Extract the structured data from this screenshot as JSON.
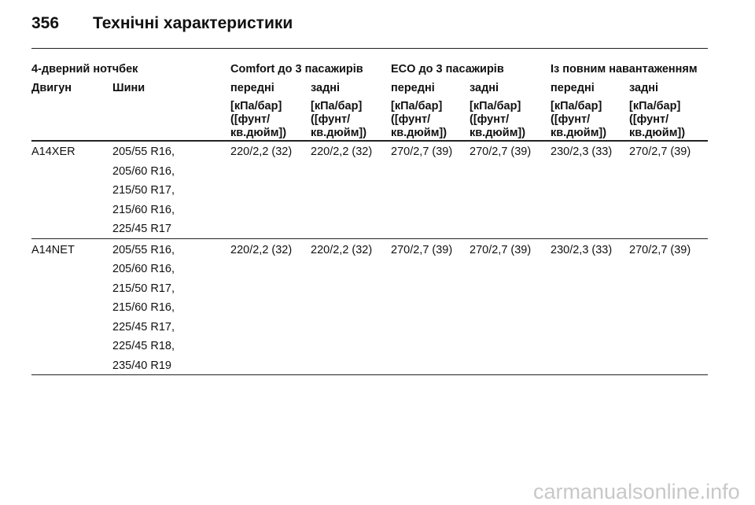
{
  "header": {
    "page_number": "356",
    "title": "Технічні характеристики"
  },
  "table": {
    "group_row": [
      "4-дверний нотчбек",
      "Comfort до 3 пасажирів",
      "ECO до 3 пасажирів",
      "Із повним навантаженням"
    ],
    "column_headers": [
      "Двигун",
      "Шини",
      "передні",
      "задні",
      "передні",
      "задні",
      "передні",
      "задні"
    ],
    "units": [
      [
        "[кПа/бар]",
        "([фунт/",
        "кв.дюйм])"
      ],
      [
        "[кПа/бар]",
        "([фунт/",
        "кв.дюйм])"
      ],
      [
        "[кПа/бар]",
        "([фунт/",
        "кв.дюйм])"
      ],
      [
        "[кПа/бар]",
        "([фунт/",
        "кв.дюйм])"
      ],
      [
        "[кПа/бар]",
        "([фунт/",
        "кв.дюйм])"
      ],
      [
        "[кПа/бар]",
        "([фунт/",
        "кв.дюйм])"
      ]
    ],
    "rows": [
      {
        "engine": "A14XER",
        "tyres": [
          "205/55 R16,",
          "205/60 R16,",
          "215/50 R17,",
          "215/60 R16,",
          "225/45 R17"
        ],
        "pressures": [
          "220/2,2 (32)",
          "220/2,2 (32)",
          "270/2,7 (39)",
          "270/2,7 (39)",
          "230/2,3 (33)",
          "270/2,7 (39)"
        ]
      },
      {
        "engine": "A14NET",
        "tyres": [
          "205/55 R16,",
          "205/60 R16,",
          "215/50 R17,",
          "215/60 R16,",
          "225/45 R17,",
          "225/45 R18,",
          "235/40 R19"
        ],
        "pressures": [
          "220/2,2 (32)",
          "220/2,2 (32)",
          "270/2,7 (39)",
          "270/2,7 (39)",
          "230/2,3 (33)",
          "270/2,7 (39)"
        ]
      }
    ]
  },
  "watermark": "carmanualsonline.info"
}
